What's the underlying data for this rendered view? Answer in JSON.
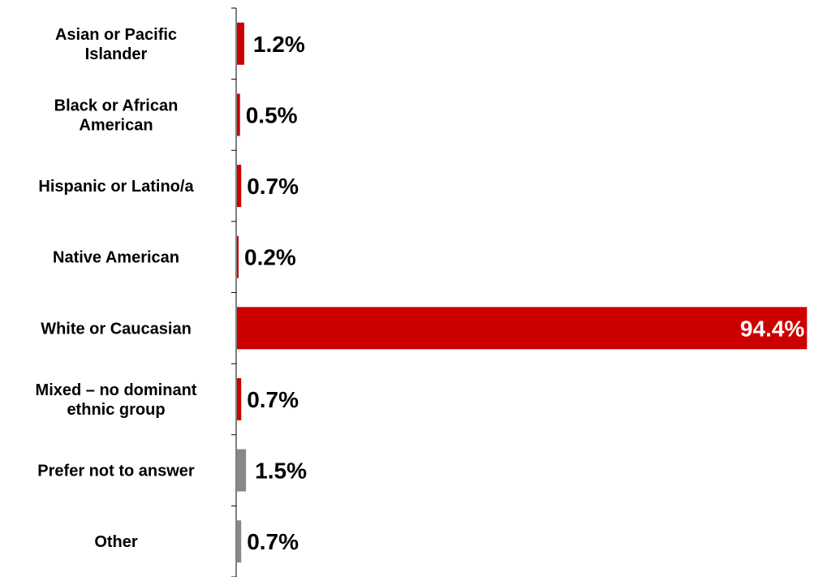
{
  "chart_data": {
    "type": "bar",
    "orientation": "horizontal",
    "categories": [
      "Asian or Pacific Islander",
      "Black or African American",
      "Hispanic or Latino/a",
      "Native American",
      "White or Caucasian",
      "Mixed – no dominant ethnic group",
      "Prefer not to answer",
      "Other"
    ],
    "category_lines": [
      [
        "Asian or Pacific",
        "Islander"
      ],
      [
        "Black or African",
        "American"
      ],
      [
        "Hispanic or Latino/a"
      ],
      [
        "Native American"
      ],
      [
        "White or Caucasian"
      ],
      [
        "Mixed – no dominant",
        "ethnic group"
      ],
      [
        "Prefer not to answer"
      ],
      [
        "Other"
      ]
    ],
    "values": [
      1.2,
      0.5,
      0.7,
      0.2,
      94.4,
      0.7,
      1.5,
      0.7
    ],
    "data_labels": [
      "1.2%",
      "0.5%",
      "0.7%",
      "0.2%",
      "94.4%",
      "0.7%",
      "1.5%",
      "0.7%"
    ],
    "bar_colors": [
      "#cc0000",
      "#cc0000",
      "#cc0000",
      "#cc0000",
      "#cc0000",
      "#cc0000",
      "#888888",
      "#888888"
    ],
    "label_colors": [
      "#000000",
      "#000000",
      "#000000",
      "#000000",
      "#ffffff",
      "#000000",
      "#000000",
      "#000000"
    ],
    "xlim": [
      0,
      100
    ],
    "title": "",
    "xlabel": "",
    "ylabel": "",
    "grid": false
  }
}
